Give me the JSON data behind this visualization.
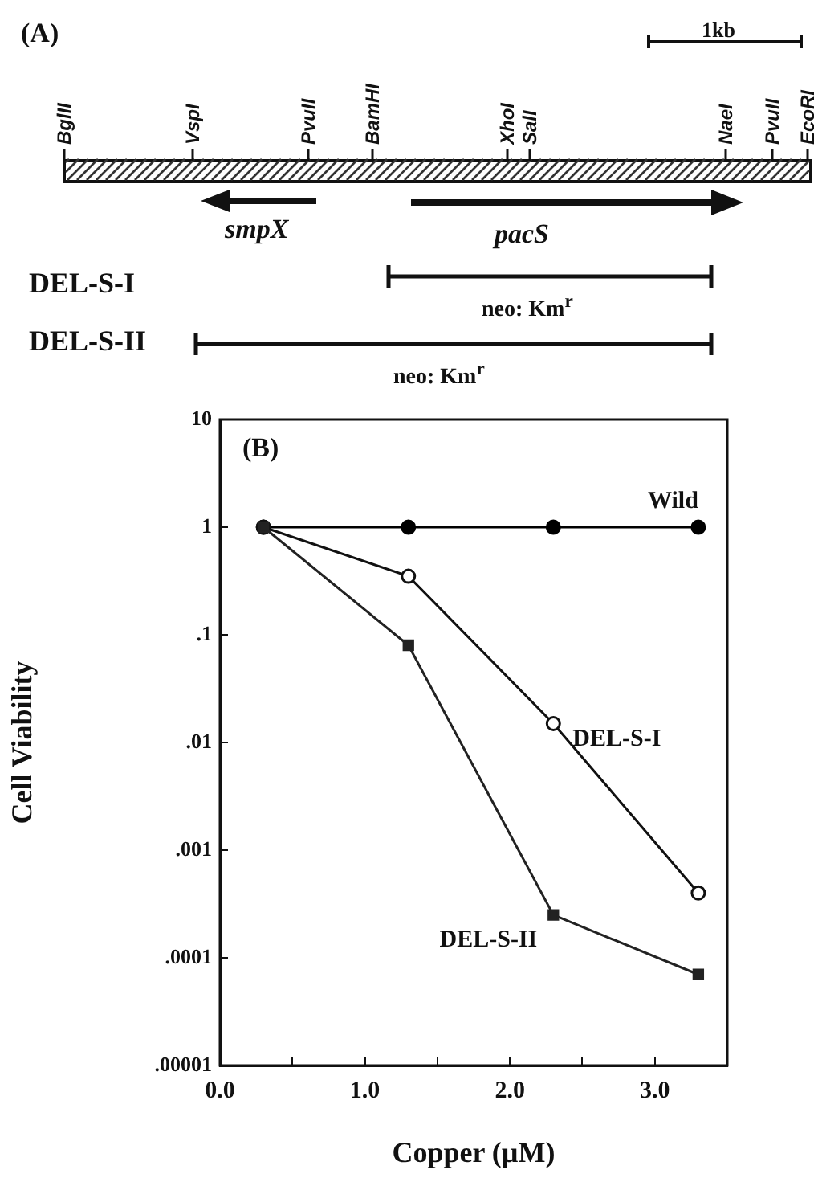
{
  "chart_data": {
    "type": "line",
    "xlabel": "Copper (µM)",
    "ylabel": "Cell Viability",
    "log": "y",
    "grid": false,
    "legend": false,
    "line_style": "solid",
    "xlim": [
      0,
      3.5
    ],
    "xticks": [
      {
        "value": 0,
        "label": "0.0"
      },
      {
        "value": 0.5,
        "label": null
      },
      {
        "value": 1,
        "label": "1.0"
      },
      {
        "value": 1.5,
        "label": null
      },
      {
        "value": 2,
        "label": "2.0"
      },
      {
        "value": 2.5,
        "label": null
      },
      {
        "value": 3,
        "label": "3.0"
      },
      {
        "value": 3.5,
        "label": null
      }
    ],
    "ylim": [
      1e-05,
      10
    ],
    "yticks": [
      {
        "value": 1e-05,
        "label": ".00001"
      },
      {
        "value": 0.0001,
        "label": ".0001"
      },
      {
        "value": 0.001,
        "label": ".001"
      },
      {
        "value": 0.01,
        "label": ".01"
      },
      {
        "value": 0.1,
        "label": ".1"
      },
      1,
      10
    ],
    "x": [
      0.3,
      1.3,
      2.3,
      3.3
    ],
    "series": [
      {
        "name": "Wild",
        "color": "#000000",
        "marker": "circle",
        "values": [
          1,
          1,
          1,
          1
        ]
      },
      {
        "name": "DEL-S-I",
        "color": "#111111",
        "marker": "circle",
        "values": [
          1,
          0.35,
          0.015,
          0.0004
        ]
      },
      {
        "name": "DEL-S-II",
        "color": "#222222",
        "marker": "square",
        "values": [
          1,
          0.08,
          0.00025,
          7e-05
        ]
      }
    ],
    "annotations": [
      "(A)",
      "1kb",
      "BglII",
      "VspI",
      "PvuII",
      "BamHI",
      "XhoI",
      "SalI",
      "NaeI",
      "PvuII",
      "EcoRI",
      "smpX",
      "pacS",
      "DEL-S-I",
      "neo: Km$^{r}$",
      "DEL-S-II",
      "neo: Km$^{r}$",
      "(B)"
    ]
  }
}
